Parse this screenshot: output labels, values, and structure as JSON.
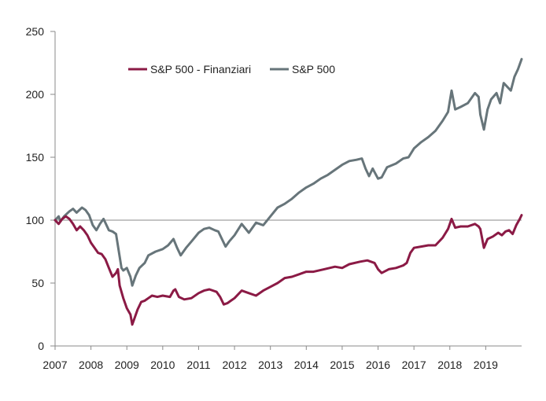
{
  "chart_data": {
    "type": "line",
    "title": "",
    "xlabel": "",
    "ylabel": "",
    "ylim": [
      0,
      250
    ],
    "xlim": [
      2007.0,
      2020.0
    ],
    "y_ticks": [
      0,
      50,
      100,
      150,
      200,
      250
    ],
    "x_ticks": [
      {
        "year": 2007,
        "label": "2007"
      },
      {
        "year": 2008,
        "label": "2008"
      },
      {
        "year": 2009,
        "label": "2009"
      },
      {
        "year": 2010,
        "label": "2010"
      },
      {
        "year": 2011,
        "label": "2011"
      },
      {
        "year": 2012,
        "label": "2012"
      },
      {
        "year": 2013,
        "label": "2013"
      },
      {
        "year": 2014,
        "label": "2014"
      },
      {
        "year": 2015,
        "label": "2015"
      },
      {
        "year": 2016,
        "label": "2016"
      },
      {
        "year": 2017,
        "label": "2017"
      },
      {
        "year": 2018,
        "label": "2018"
      },
      {
        "year": 2019,
        "label": "2019"
      }
    ],
    "reference_line": 100,
    "grid": false,
    "legend_position": "top-left",
    "series": [
      {
        "name": "S&P 500 - Finanziari",
        "color": "#8b1a45",
        "points": [
          [
            2007.0,
            100
          ],
          [
            2007.1,
            97
          ],
          [
            2007.2,
            101
          ],
          [
            2007.3,
            103
          ],
          [
            2007.4,
            101
          ],
          [
            2007.5,
            97
          ],
          [
            2007.6,
            92
          ],
          [
            2007.7,
            95
          ],
          [
            2007.8,
            92
          ],
          [
            2007.9,
            88
          ],
          [
            2008.0,
            82
          ],
          [
            2008.1,
            78
          ],
          [
            2008.2,
            74
          ],
          [
            2008.3,
            73
          ],
          [
            2008.4,
            69
          ],
          [
            2008.5,
            62
          ],
          [
            2008.6,
            55
          ],
          [
            2008.7,
            58
          ],
          [
            2008.75,
            61
          ],
          [
            2008.8,
            48
          ],
          [
            2008.9,
            38
          ],
          [
            2009.0,
            30
          ],
          [
            2009.1,
            25
          ],
          [
            2009.15,
            17
          ],
          [
            2009.2,
            21
          ],
          [
            2009.3,
            29
          ],
          [
            2009.4,
            35
          ],
          [
            2009.5,
            36
          ],
          [
            2009.6,
            38
          ],
          [
            2009.7,
            40
          ],
          [
            2009.85,
            39
          ],
          [
            2010.0,
            40
          ],
          [
            2010.2,
            39
          ],
          [
            2010.3,
            44
          ],
          [
            2010.35,
            45
          ],
          [
            2010.45,
            39
          ],
          [
            2010.6,
            37
          ],
          [
            2010.8,
            38
          ],
          [
            2011.0,
            42
          ],
          [
            2011.15,
            44
          ],
          [
            2011.3,
            45
          ],
          [
            2011.5,
            43
          ],
          [
            2011.6,
            39
          ],
          [
            2011.7,
            33
          ],
          [
            2011.8,
            34
          ],
          [
            2011.9,
            36
          ],
          [
            2012.0,
            38
          ],
          [
            2012.2,
            44
          ],
          [
            2012.4,
            42
          ],
          [
            2012.6,
            40
          ],
          [
            2012.8,
            44
          ],
          [
            2013.0,
            47
          ],
          [
            2013.2,
            50
          ],
          [
            2013.4,
            54
          ],
          [
            2013.6,
            55
          ],
          [
            2013.8,
            57
          ],
          [
            2014.0,
            59
          ],
          [
            2014.2,
            59
          ],
          [
            2014.5,
            61
          ],
          [
            2014.8,
            63
          ],
          [
            2015.0,
            62
          ],
          [
            2015.2,
            65
          ],
          [
            2015.5,
            67
          ],
          [
            2015.7,
            68
          ],
          [
            2015.9,
            66
          ],
          [
            2016.0,
            61
          ],
          [
            2016.1,
            58
          ],
          [
            2016.3,
            61
          ],
          [
            2016.5,
            62
          ],
          [
            2016.7,
            64
          ],
          [
            2016.8,
            66
          ],
          [
            2016.9,
            74
          ],
          [
            2017.0,
            78
          ],
          [
            2017.2,
            79
          ],
          [
            2017.4,
            80
          ],
          [
            2017.6,
            80
          ],
          [
            2017.8,
            86
          ],
          [
            2017.95,
            93
          ],
          [
            2018.05,
            101
          ],
          [
            2018.15,
            94
          ],
          [
            2018.3,
            95
          ],
          [
            2018.5,
            95
          ],
          [
            2018.7,
            97
          ],
          [
            2018.8,
            95
          ],
          [
            2018.85,
            93
          ],
          [
            2018.95,
            78
          ],
          [
            2019.05,
            85
          ],
          [
            2019.2,
            87
          ],
          [
            2019.35,
            90
          ],
          [
            2019.45,
            88
          ],
          [
            2019.55,
            91
          ],
          [
            2019.65,
            92
          ],
          [
            2019.75,
            89
          ],
          [
            2019.85,
            96
          ],
          [
            2019.95,
            101
          ],
          [
            2020.0,
            104
          ]
        ]
      },
      {
        "name": "S&P 500",
        "color": "#67757a",
        "points": [
          [
            2007.0,
            100
          ],
          [
            2007.1,
            103
          ],
          [
            2007.15,
            99
          ],
          [
            2007.25,
            103
          ],
          [
            2007.4,
            107
          ],
          [
            2007.5,
            109
          ],
          [
            2007.6,
            106
          ],
          [
            2007.75,
            110
          ],
          [
            2007.85,
            108
          ],
          [
            2007.95,
            104
          ],
          [
            2008.05,
            96
          ],
          [
            2008.15,
            92
          ],
          [
            2008.25,
            97
          ],
          [
            2008.35,
            101
          ],
          [
            2008.5,
            92
          ],
          [
            2008.6,
            91
          ],
          [
            2008.7,
            89
          ],
          [
            2008.8,
            71
          ],
          [
            2008.85,
            62
          ],
          [
            2008.9,
            60
          ],
          [
            2009.0,
            62
          ],
          [
            2009.1,
            55
          ],
          [
            2009.15,
            48
          ],
          [
            2009.25,
            56
          ],
          [
            2009.35,
            62
          ],
          [
            2009.5,
            66
          ],
          [
            2009.6,
            72
          ],
          [
            2009.8,
            75
          ],
          [
            2010.0,
            77
          ],
          [
            2010.15,
            80
          ],
          [
            2010.3,
            85
          ],
          [
            2010.4,
            78
          ],
          [
            2010.5,
            72
          ],
          [
            2010.65,
            78
          ],
          [
            2010.8,
            83
          ],
          [
            2011.0,
            90
          ],
          [
            2011.15,
            93
          ],
          [
            2011.3,
            94
          ],
          [
            2011.45,
            92
          ],
          [
            2011.55,
            91
          ],
          [
            2011.65,
            85
          ],
          [
            2011.75,
            79
          ],
          [
            2011.85,
            83
          ],
          [
            2012.0,
            88
          ],
          [
            2012.2,
            97
          ],
          [
            2012.4,
            90
          ],
          [
            2012.6,
            98
          ],
          [
            2012.8,
            96
          ],
          [
            2013.0,
            103
          ],
          [
            2013.2,
            110
          ],
          [
            2013.4,
            113
          ],
          [
            2013.6,
            117
          ],
          [
            2013.8,
            122
          ],
          [
            2014.0,
            126
          ],
          [
            2014.2,
            129
          ],
          [
            2014.4,
            133
          ],
          [
            2014.6,
            136
          ],
          [
            2014.8,
            140
          ],
          [
            2015.0,
            144
          ],
          [
            2015.2,
            147
          ],
          [
            2015.4,
            148
          ],
          [
            2015.55,
            149
          ],
          [
            2015.65,
            141
          ],
          [
            2015.75,
            135
          ],
          [
            2015.85,
            141
          ],
          [
            2016.0,
            133
          ],
          [
            2016.1,
            134
          ],
          [
            2016.25,
            142
          ],
          [
            2016.5,
            145
          ],
          [
            2016.7,
            149
          ],
          [
            2016.85,
            150
          ],
          [
            2017.0,
            157
          ],
          [
            2017.2,
            162
          ],
          [
            2017.4,
            166
          ],
          [
            2017.6,
            171
          ],
          [
            2017.8,
            179
          ],
          [
            2017.95,
            186
          ],
          [
            2018.05,
            203
          ],
          [
            2018.15,
            188
          ],
          [
            2018.3,
            190
          ],
          [
            2018.5,
            193
          ],
          [
            2018.7,
            201
          ],
          [
            2018.8,
            198
          ],
          [
            2018.85,
            184
          ],
          [
            2018.95,
            172
          ],
          [
            2019.05,
            188
          ],
          [
            2019.15,
            196
          ],
          [
            2019.3,
            201
          ],
          [
            2019.4,
            193
          ],
          [
            2019.5,
            209
          ],
          [
            2019.6,
            206
          ],
          [
            2019.7,
            203
          ],
          [
            2019.8,
            214
          ],
          [
            2019.9,
            220
          ],
          [
            2020.0,
            228
          ]
        ]
      }
    ]
  }
}
